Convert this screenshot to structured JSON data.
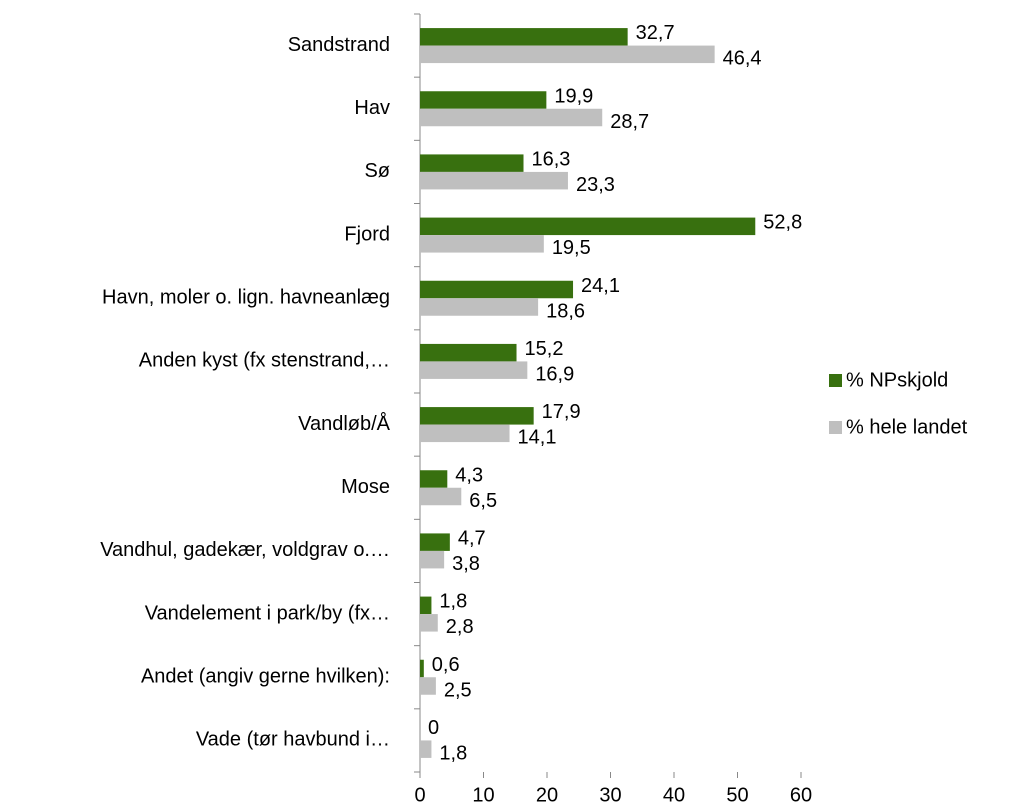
{
  "chart_data": {
    "type": "bar",
    "orientation": "horizontal",
    "categories": [
      "Sandstrand",
      "Hav",
      "Sø",
      "Fjord",
      "Havn, moler o. lign. havneanlæg",
      "Anden kyst (fx stenstrand,…",
      "Vandløb/Å",
      "Mose",
      "Vandhul, gadekær, voldgrav o.…",
      "Vandelement i park/by (fx…",
      "Andet (angiv gerne hvilken):",
      "Vade (tør havbund i…"
    ],
    "series": [
      {
        "name": "% NPskjold",
        "color": "#38700f",
        "values": [
          32.7,
          19.9,
          16.3,
          52.8,
          24.1,
          15.2,
          17.9,
          4.3,
          4.7,
          1.8,
          0.6,
          0
        ],
        "value_labels": [
          "32,7",
          "19,9",
          "16,3",
          "52,8",
          "24,1",
          "15,2",
          "17,9",
          "4,3",
          "4,7",
          "1,8",
          "0,6",
          "0"
        ]
      },
      {
        "name": "% hele landet",
        "color": "#bfbfbf",
        "values": [
          46.4,
          28.7,
          23.3,
          19.5,
          18.6,
          16.9,
          14.1,
          6.5,
          3.8,
          2.8,
          2.5,
          1.8
        ],
        "value_labels": [
          "46,4",
          "28,7",
          "23,3",
          "19,5",
          "18,6",
          "16,9",
          "14,1",
          "6,5",
          "3,8",
          "2,8",
          "2,5",
          "1,8"
        ]
      }
    ],
    "xlim": [
      0,
      60
    ],
    "xticks": [
      0,
      10,
      20,
      30,
      40,
      50,
      60
    ],
    "legend": "right"
  }
}
